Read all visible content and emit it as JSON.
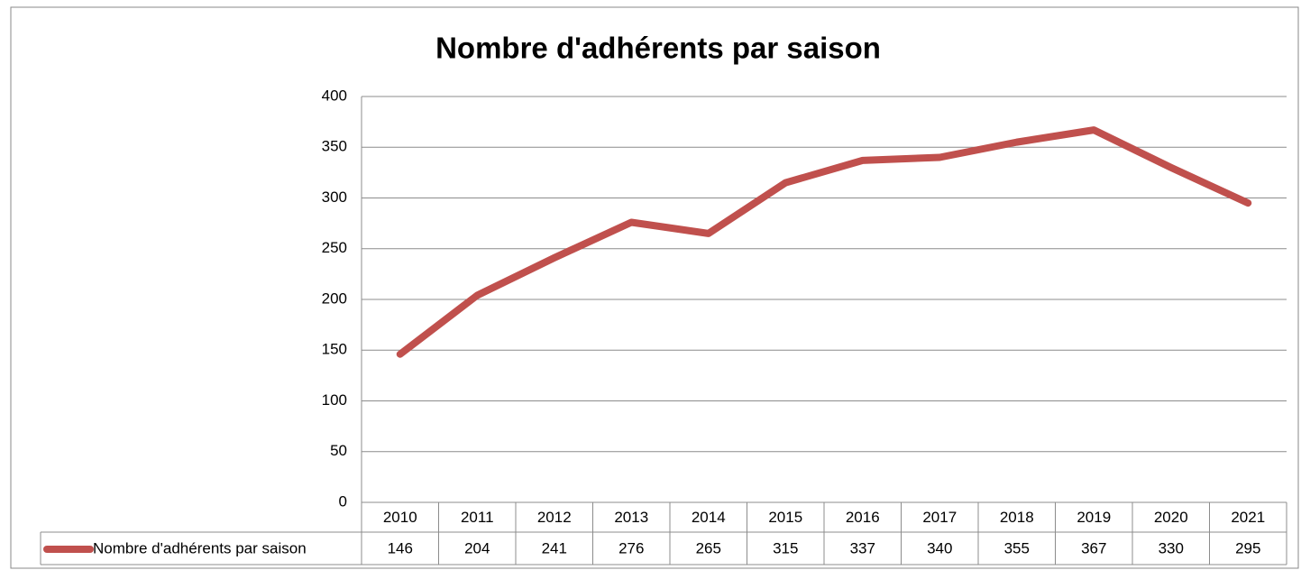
{
  "chart_data": {
    "type": "line",
    "title": "Nombre d'adhérents par saison",
    "categories": [
      "2010",
      "2011",
      "2012",
      "2013",
      "2014",
      "2015",
      "2016",
      "2017",
      "2018",
      "2019",
      "2020",
      "2021"
    ],
    "series": [
      {
        "name": "Nombre d'adhérents par saison",
        "color": "#c0504d",
        "values": [
          146,
          204,
          241,
          276,
          265,
          315,
          337,
          340,
          355,
          367,
          330,
          295
        ]
      }
    ],
    "ylim": [
      0,
      400
    ],
    "yticks": [
      0,
      50,
      100,
      150,
      200,
      250,
      300,
      350,
      400
    ],
    "grid": true,
    "data_table": true
  }
}
